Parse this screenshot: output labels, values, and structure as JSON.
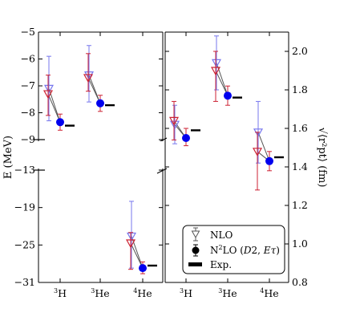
{
  "chart_data": {
    "type": "scatter",
    "panels": [
      {
        "id": "energy",
        "ylabel": "E (MeV)",
        "yticks_top": [
          "−5",
          "−6",
          "−7",
          "−8",
          "−9"
        ],
        "yticks_bottom": [
          "−13",
          "−19",
          "−25",
          "−31"
        ],
        "broken_axis": true,
        "ylim_top": [
          -9,
          -5
        ],
        "ylim_bottom": [
          -31,
          -13
        ],
        "xtick_labels": [
          {
            "sup": "3",
            "base": "H"
          },
          {
            "sup": "3",
            "base": "He"
          },
          {
            "sup": "4",
            "base": "He"
          }
        ],
        "nlo_blue": [
          {
            "nucleus": "3H",
            "value": -7.1,
            "err_low": -8.3,
            "err_high": -5.9
          },
          {
            "nucleus": "3He",
            "value": -6.6,
            "err_low": -7.6,
            "err_high": -5.5
          },
          {
            "nucleus": "4He",
            "value": -23.6,
            "err_low": -28.7,
            "err_high": -18.0
          }
        ],
        "nlo_red": [
          {
            "nucleus": "3H",
            "value": -7.3,
            "err_low": -8.1,
            "err_high": -6.6
          },
          {
            "nucleus": "3He",
            "value": -6.7,
            "err_low": -7.2,
            "err_high": -5.8
          },
          {
            "nucleus": "4He",
            "value": -24.7,
            "err_low": -28.9,
            "err_high": -23.0
          }
        ],
        "n2lo": [
          {
            "nucleus": "3H",
            "value": -8.35,
            "err_low": -8.65,
            "err_high": -8.05
          },
          {
            "nucleus": "3He",
            "value": -7.65,
            "err_low": -7.95,
            "err_high": -7.35
          },
          {
            "nucleus": "4He",
            "value": -28.7,
            "err_low": -29.6,
            "err_high": -27.7
          }
        ],
        "exp": [
          {
            "nucleus": "3H",
            "value": -8.48
          },
          {
            "nucleus": "3He",
            "value": -7.72
          },
          {
            "nucleus": "4He",
            "value": -28.3
          }
        ]
      },
      {
        "id": "radius",
        "ylabel": "√⟨r²pt⟩ (fm)",
        "yticks": [
          "2.0",
          "1.8",
          "1.6",
          "1.4",
          "1.2",
          "1.0",
          "0.8"
        ],
        "ylim": [
          0.8,
          2.1
        ],
        "xtick_labels": [
          {
            "sup": "3",
            "base": "H"
          },
          {
            "sup": "3",
            "base": "He"
          },
          {
            "sup": "4",
            "base": "He"
          }
        ],
        "nlo_blue": [
          {
            "nucleus": "3H",
            "value": 1.62,
            "err_low": 1.52,
            "err_high": 1.72
          },
          {
            "nucleus": "3He",
            "value": 1.94,
            "err_low": 1.8,
            "err_high": 2.08
          },
          {
            "nucleus": "4He",
            "value": 1.58,
            "err_low": 1.42,
            "err_high": 1.74
          }
        ],
        "nlo_red": [
          {
            "nucleus": "3H",
            "value": 1.64,
            "err_low": 1.54,
            "err_high": 1.74
          },
          {
            "nucleus": "3He",
            "value": 1.9,
            "err_low": 1.74,
            "err_high": 2.0
          },
          {
            "nucleus": "4He",
            "value": 1.48,
            "err_low": 1.28,
            "err_high": 1.58
          }
        ],
        "n2lo": [
          {
            "nucleus": "3H",
            "value": 1.55,
            "err_low": 1.51,
            "err_high": 1.6
          },
          {
            "nucleus": "3He",
            "value": 1.77,
            "err_low": 1.72,
            "err_high": 1.82
          },
          {
            "nucleus": "4He",
            "value": 1.43,
            "err_low": 1.38,
            "err_high": 1.48
          }
        ],
        "exp": [
          {
            "nucleus": "3H",
            "value": 1.59
          },
          {
            "nucleus": "3He",
            "value": 1.76
          },
          {
            "nucleus": "4He",
            "value": 1.45
          }
        ]
      }
    ],
    "legend": {
      "placement": "lower-right of right panel",
      "entries": [
        {
          "label": "NLO",
          "marker": "open-triangle-down-errorbar"
        },
        {
          "label": "N²LO (D2, Eτ)",
          "marker": "filled-circle-errorbar"
        },
        {
          "label": "Exp.",
          "marker": "thick-bar"
        }
      ]
    },
    "colors": {
      "nlo_blue": "#7777ee",
      "nlo_red": "#cc2233",
      "n2lo": "#0000ee",
      "exp": "#000000",
      "connector": "#555555"
    }
  }
}
